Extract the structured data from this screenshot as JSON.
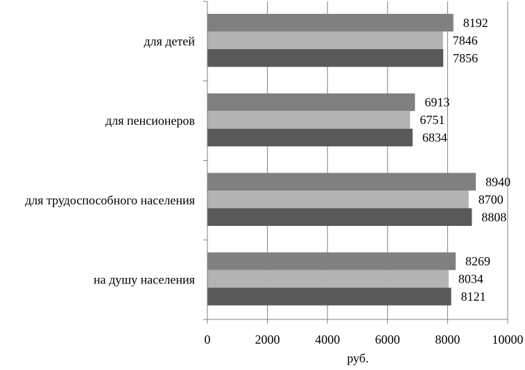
{
  "chart_data": {
    "type": "bar",
    "orientation": "horizontal",
    "categories": [
      "для детей",
      "для пенсионеров",
      "для трудоспособного населения",
      "на душу населения"
    ],
    "series": [
      {
        "values": [
          8192,
          6913,
          8940,
          8269
        ],
        "color": "#808080"
      },
      {
        "values": [
          7846,
          6751,
          8700,
          8034
        ],
        "color": "#b3b3b3"
      },
      {
        "values": [
          7856,
          6834,
          8808,
          8121
        ],
        "color": "#595959"
      }
    ],
    "xlabel": "руб.",
    "xlim": [
      0,
      10000
    ],
    "xticks": [
      "0",
      "2000",
      "4000",
      "6000",
      "8000",
      "10000"
    ],
    "xtick_values": [
      0,
      2000,
      4000,
      6000,
      8000,
      10000
    ],
    "grid": "vertical",
    "legend": "none"
  }
}
